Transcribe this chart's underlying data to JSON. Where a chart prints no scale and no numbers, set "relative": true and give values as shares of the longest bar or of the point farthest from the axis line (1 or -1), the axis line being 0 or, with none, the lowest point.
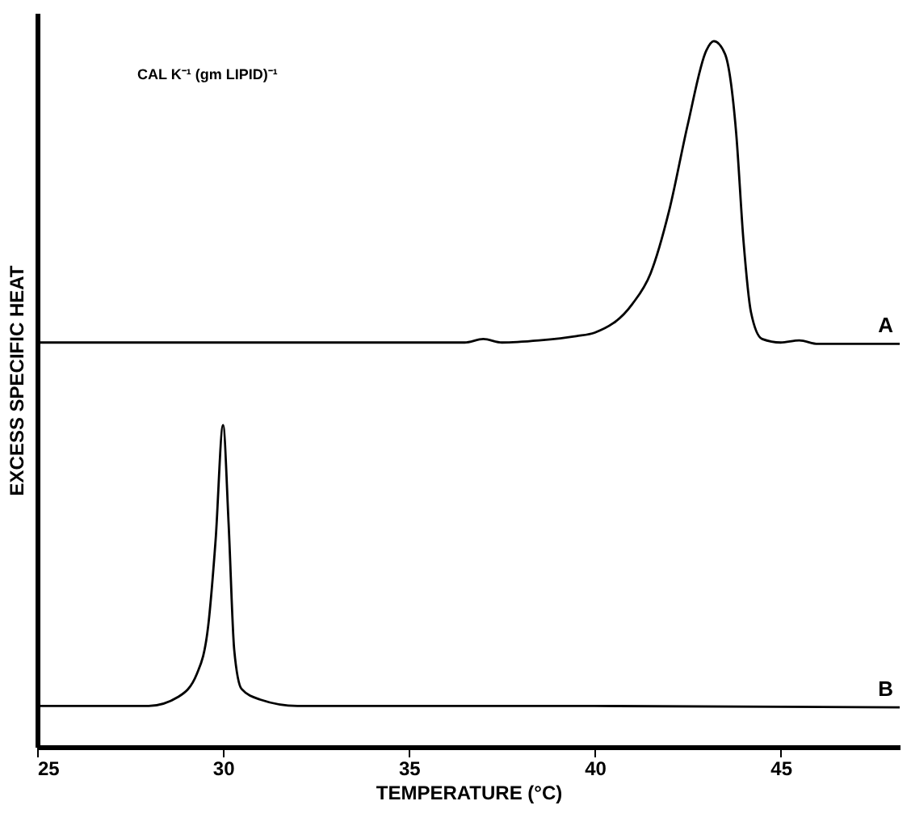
{
  "chart_data": {
    "type": "line",
    "relative": true,
    "xlabel": "TEMPERATURE (°C)",
    "ylabel": "EXCESS SPECIFIC HEAT",
    "annotations": [
      "CAL K⁻¹ (gm LIPID)⁻¹"
    ],
    "xlim": [
      25,
      48.2
    ],
    "xticks": [
      25,
      30,
      35,
      40,
      45
    ],
    "tick_labels": "x",
    "grid": false,
    "series": [
      {
        "name": "A",
        "color": "#000000",
        "x": [
          25,
          30,
          35,
          36.5,
          37,
          37.5,
          38.5,
          39.5,
          40,
          41,
          41.5,
          42,
          42.5,
          43,
          43.2,
          43.5,
          43.8,
          44.0,
          44.2,
          44.5,
          45,
          45.5,
          46,
          48.2
        ],
        "values": [
          0.573,
          0.573,
          0.573,
          0.573,
          0.578,
          0.573,
          0.576,
          0.582,
          0.587,
          0.627,
          0.671,
          0.76,
          0.882,
          0.987,
          1,
          0.982,
          0.871,
          0.716,
          0.616,
          0.578,
          0.573,
          0.576,
          0.571,
          0.571
        ]
      },
      {
        "name": "B",
        "color": "#000000",
        "x": [
          25,
          28,
          28.8,
          29.3,
          29.6,
          29.8,
          30.0,
          30.15,
          30.3,
          30.5,
          31,
          32,
          40,
          48.2
        ],
        "values": [
          0.058,
          0.058,
          0.071,
          0.104,
          0.171,
          0.293,
          0.456,
          0.316,
          0.138,
          0.082,
          0.067,
          0.058,
          0.058,
          0.056
        ]
      }
    ]
  }
}
